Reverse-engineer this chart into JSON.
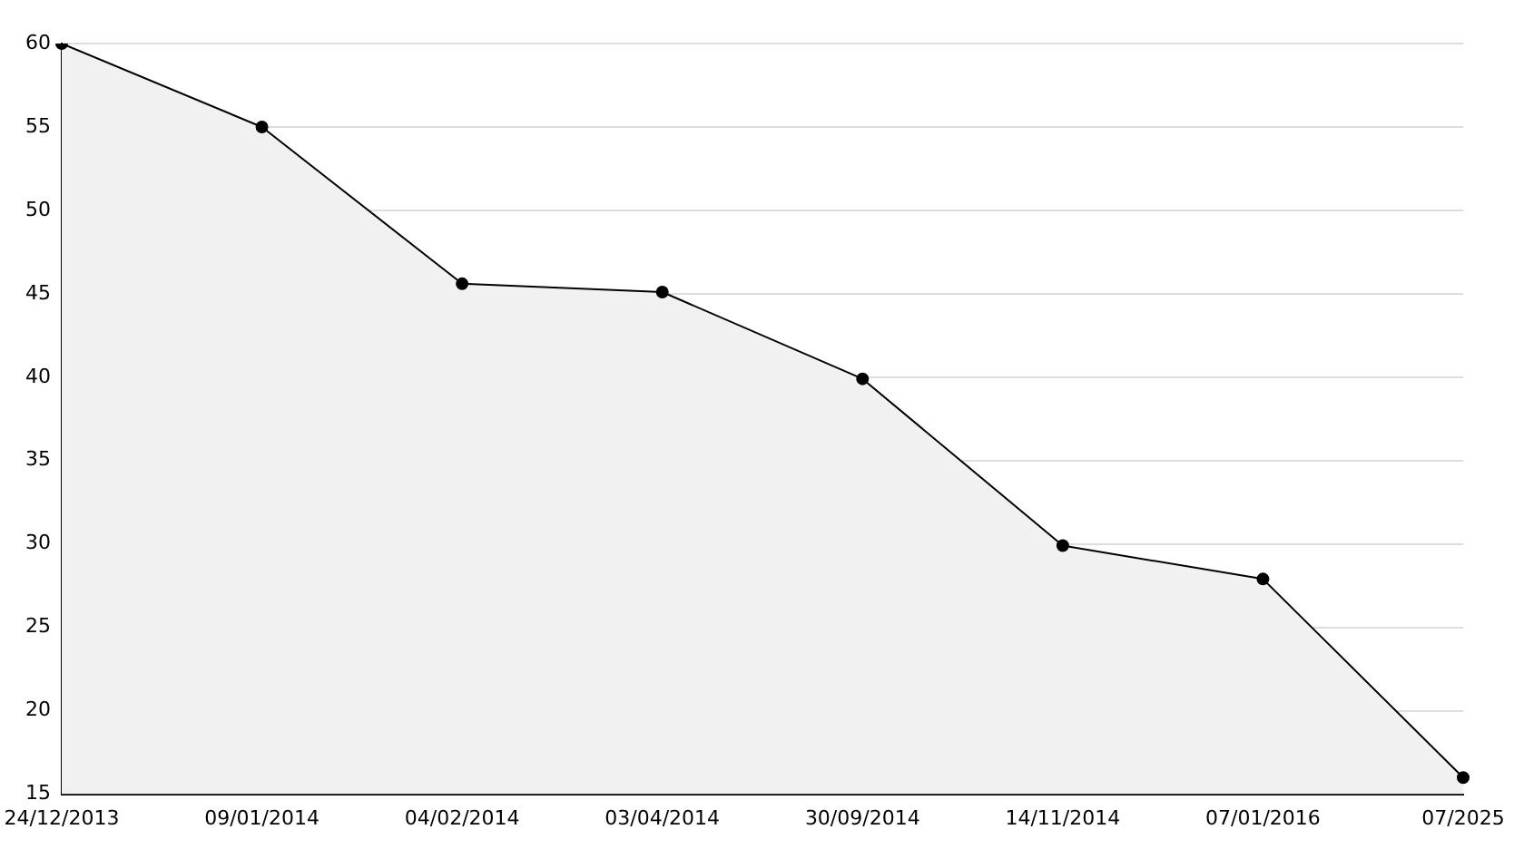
{
  "chart_data": {
    "type": "area",
    "categories": [
      "24/12/2013",
      "09/01/2014",
      "04/02/2014",
      "03/04/2014",
      "30/09/2014",
      "14/11/2014",
      "07/01/2016",
      "07/2025"
    ],
    "series": [
      {
        "color": "#000000",
        "values": [
          60,
          55,
          45.6,
          45.1,
          39.9,
          29.9,
          27.9,
          16
        ]
      }
    ],
    "ylim": [
      15,
      60
    ],
    "yticks": [
      15,
      20,
      25,
      30,
      35,
      40,
      45,
      50,
      55,
      60
    ],
    "grid": "y",
    "marker": "circle",
    "legend": false
  }
}
